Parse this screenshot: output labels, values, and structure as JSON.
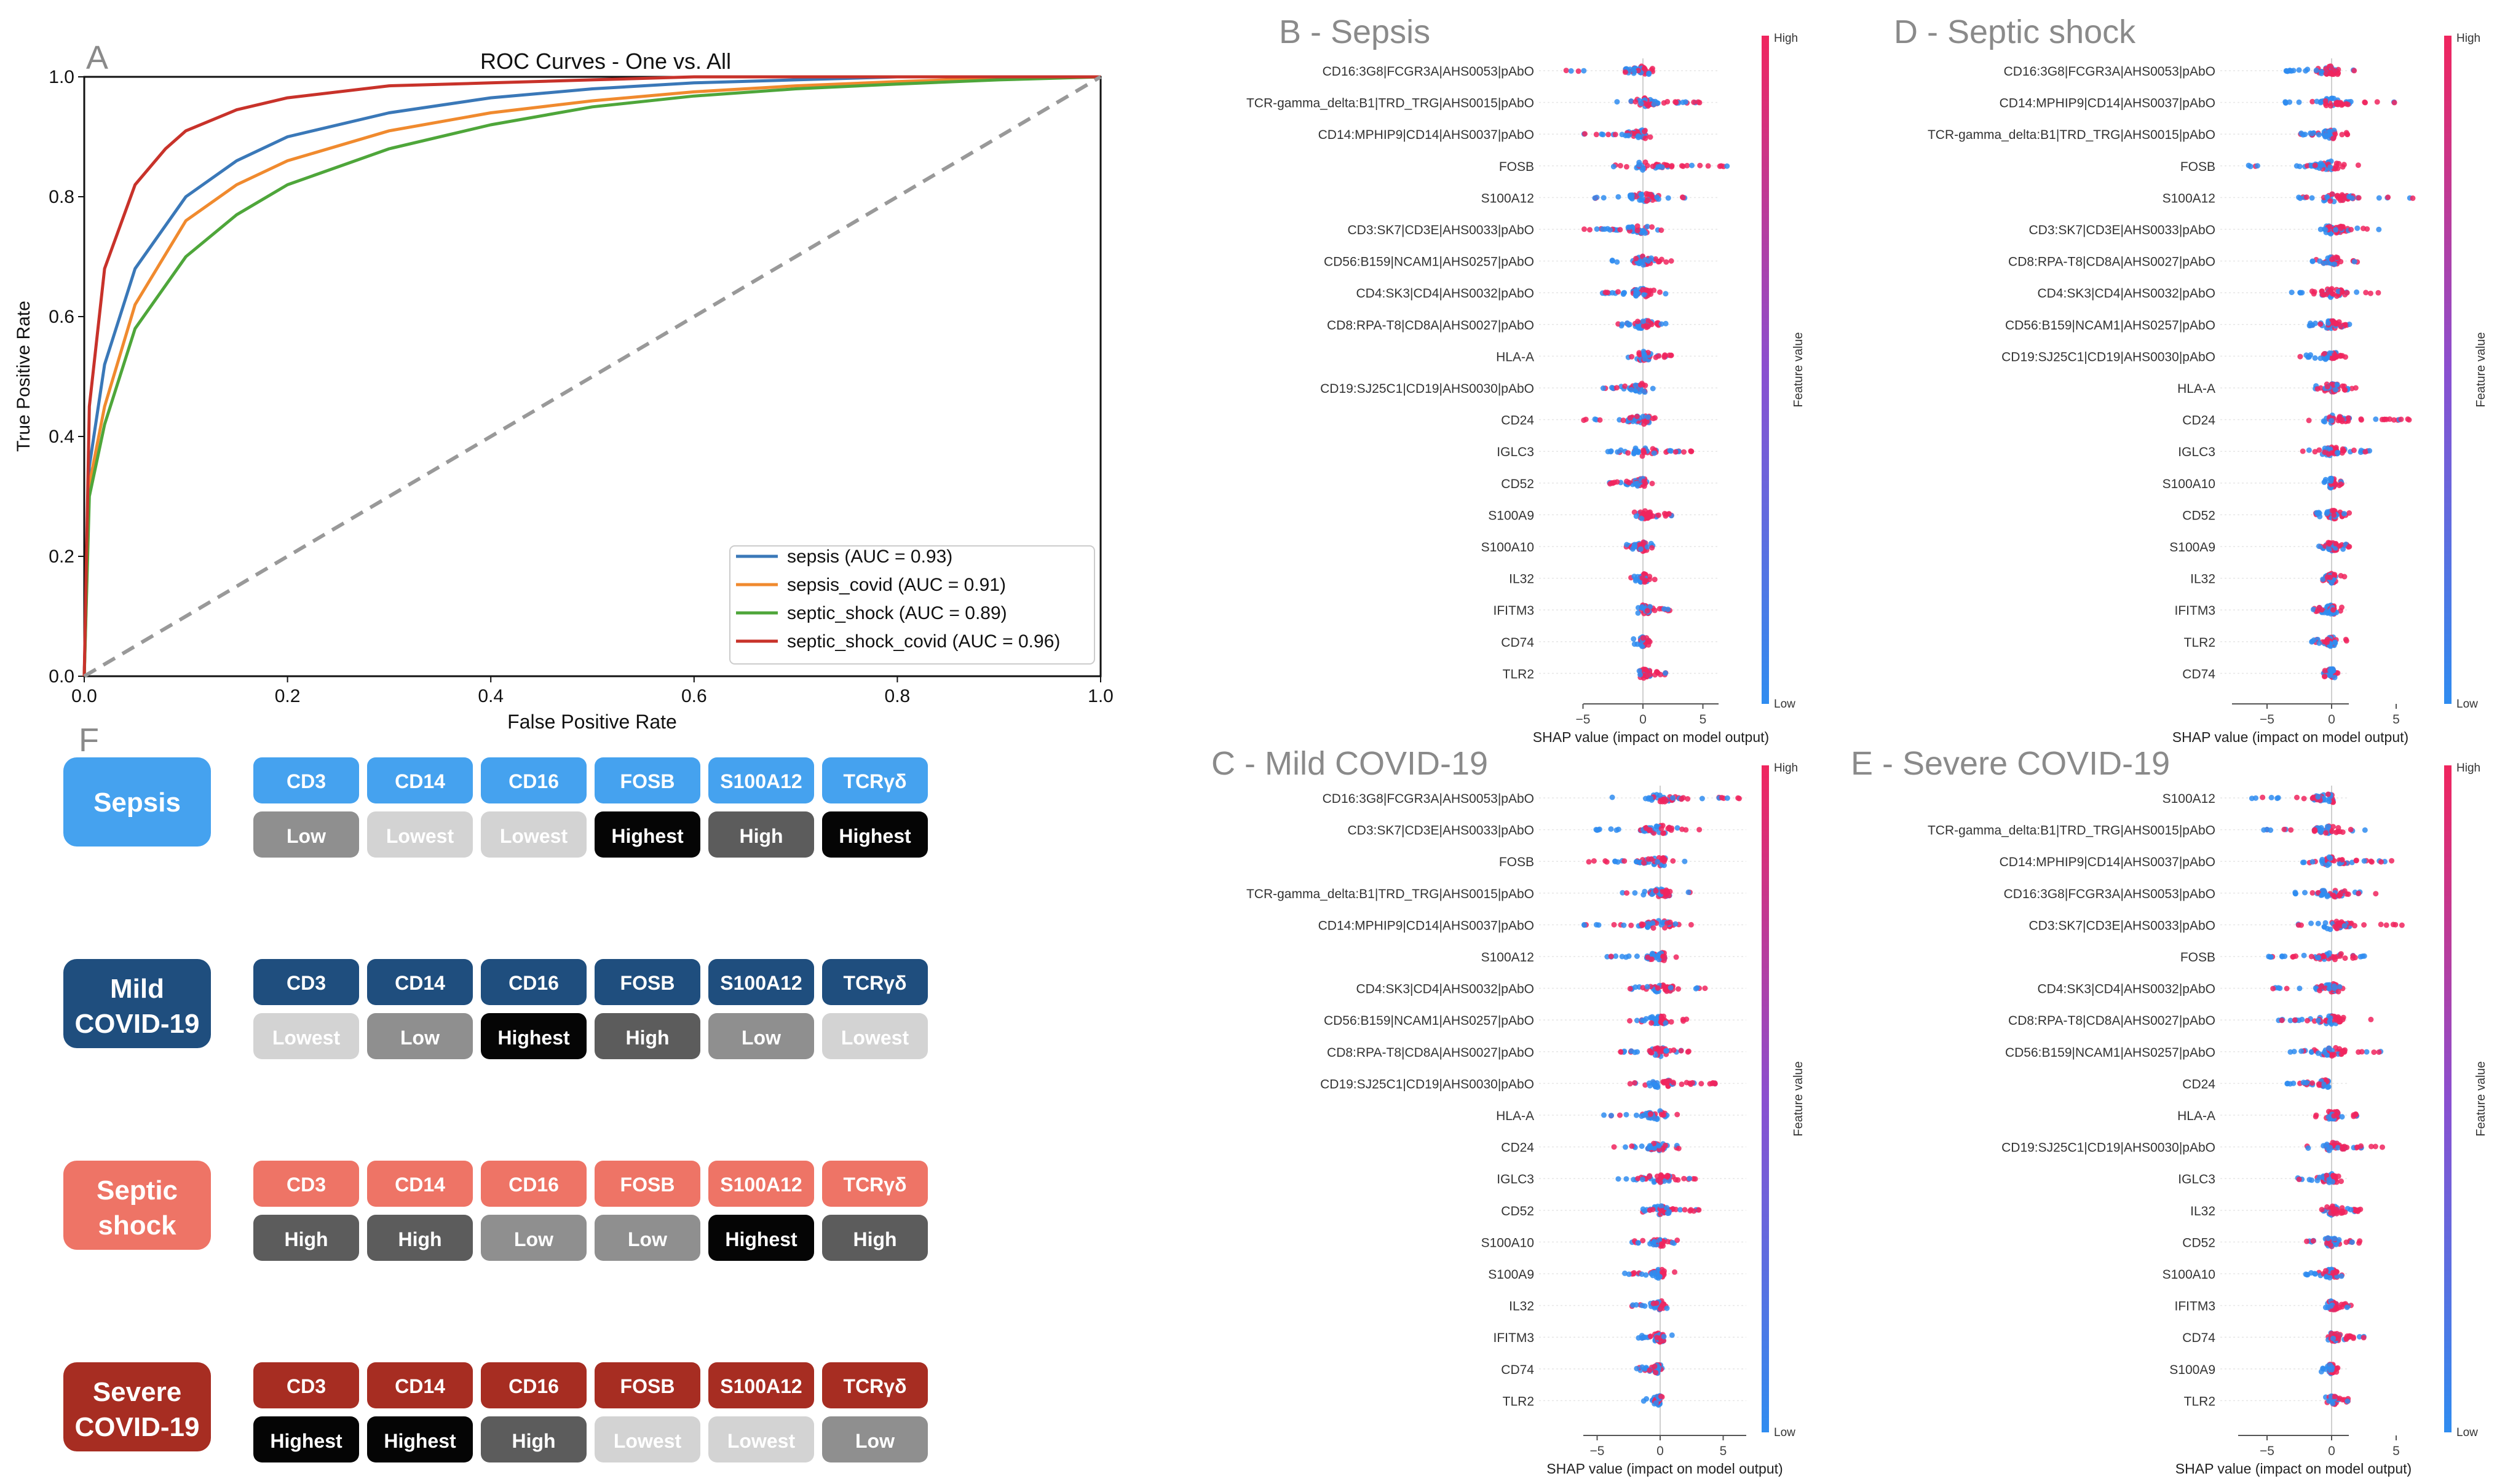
{
  "colors": {
    "roc_sepsis": "#3a78b8",
    "roc_sepsis_covid": "#f08a2e",
    "roc_septic_shock": "#4ea63a",
    "roc_septic_shock_covid": "#c8322a",
    "shap_low": "#2f8cf0",
    "shap_high": "#f0255e",
    "sepsis_label": "#45a2ef",
    "mild_label": "#1f4e7e",
    "shock_label": "#ee7466",
    "severe_label": "#a72d22",
    "level_lowest": "#d3d3d3",
    "level_low": "#8f8f8f",
    "level_high": "#5c5c5c",
    "level_highest": "#050505"
  },
  "chart_data": [
    {
      "panel": "A",
      "type": "line",
      "title": "ROC Curves - One vs. All",
      "xlabel": "False Positive Rate",
      "ylabel": "True Positive Rate",
      "xlim": [
        0,
        1
      ],
      "ylim": [
        0,
        1
      ],
      "xticks": [
        "0.0",
        "0.2",
        "0.4",
        "0.6",
        "0.8",
        "1.0"
      ],
      "yticks": [
        "0.0",
        "0.2",
        "0.4",
        "0.6",
        "0.8",
        "1.0"
      ],
      "legend_position": "bottom-right",
      "series": [
        {
          "name": "sepsis (AUC = 0.93)",
          "color": "#3a78b8",
          "x": [
            0,
            0.005,
            0.02,
            0.05,
            0.1,
            0.15,
            0.2,
            0.3,
            0.4,
            0.5,
            0.6,
            0.7,
            0.8,
            0.9,
            1.0
          ],
          "y": [
            0,
            0.35,
            0.52,
            0.68,
            0.8,
            0.86,
            0.9,
            0.94,
            0.965,
            0.98,
            0.99,
            0.995,
            1.0,
            1.0,
            1.0
          ]
        },
        {
          "name": "sepsis_covid (AUC = 0.91)",
          "color": "#f08a2e",
          "x": [
            0,
            0.005,
            0.02,
            0.05,
            0.1,
            0.15,
            0.2,
            0.3,
            0.4,
            0.5,
            0.6,
            0.7,
            0.8,
            0.9,
            1.0
          ],
          "y": [
            0,
            0.32,
            0.45,
            0.62,
            0.76,
            0.82,
            0.86,
            0.91,
            0.94,
            0.96,
            0.975,
            0.985,
            0.992,
            0.998,
            1.0
          ]
        },
        {
          "name": "septic_shock (AUC = 0.89)",
          "color": "#4ea63a",
          "x": [
            0,
            0.005,
            0.02,
            0.05,
            0.1,
            0.15,
            0.2,
            0.3,
            0.4,
            0.5,
            0.6,
            0.7,
            0.8,
            0.9,
            1.0
          ],
          "y": [
            0,
            0.3,
            0.42,
            0.58,
            0.7,
            0.77,
            0.82,
            0.88,
            0.92,
            0.95,
            0.968,
            0.98,
            0.988,
            0.995,
            1.0
          ]
        },
        {
          "name": "septic_shock_covid (AUC = 0.96)",
          "color": "#c8322a",
          "x": [
            0,
            0.005,
            0.02,
            0.05,
            0.08,
            0.1,
            0.15,
            0.2,
            0.3,
            0.4,
            0.5,
            0.6,
            0.8,
            1.0
          ],
          "y": [
            0,
            0.45,
            0.68,
            0.82,
            0.88,
            0.91,
            0.945,
            0.965,
            0.985,
            0.99,
            0.995,
            1.0,
            1.0,
            1.0
          ]
        },
        {
          "name": "chance",
          "color": "#999999",
          "dashed": true,
          "x": [
            0,
            1
          ],
          "y": [
            0,
            1
          ]
        }
      ]
    },
    {
      "panel": "B",
      "type": "scatter",
      "title": "B - Sepsis",
      "xlabel": "SHAP value (impact on model output)",
      "colorbar_label": "Feature value",
      "colorbar_high": "High",
      "colorbar_low": "Low",
      "xlim": [
        -7,
        7.5
      ],
      "xticks": [
        -5,
        0,
        5
      ],
      "features": [
        "CD16:3G8|FCGR3A|AHS0053|pAbO",
        "TCR-gamma_delta:B1|TRD_TRG|AHS0015|pAbO",
        "CD14:MPHIP9|CD14|AHS0037|pAbO",
        "FOSB",
        "S100A12",
        "CD3:SK7|CD3E|AHS0033|pAbO",
        "CD56:B159|NCAM1|AHS0257|pAbO",
        "CD4:SK3|CD4|AHS0032|pAbO",
        "CD8:RPA-T8|CD8A|AHS0027|pAbO",
        "HLA-A",
        "CD19:SJ25C1|CD19|AHS0030|pAbO",
        "CD24",
        "IGLC3",
        "CD52",
        "S100A9",
        "S100A10",
        "IL32",
        "IFITM3",
        "CD74",
        "TLR2"
      ],
      "min": [
        -6.4,
        -2.5,
        -5.5,
        -2.6,
        -4.3,
        -4.9,
        -3.4,
        -3.4,
        -2.4,
        -1.3,
        -3.9,
        -5.1,
        -3.3,
        -2.8,
        -1.2,
        -1.5,
        -1.0,
        -0.6,
        -0.8,
        -0.5
      ],
      "max": [
        1.4,
        5.0,
        1.0,
        8.2,
        3.8,
        1.8,
        2.5,
        2.0,
        2.0,
        2.4,
        0.9,
        2.3,
        4.6,
        0.8,
        2.6,
        0.9,
        1.0,
        2.4,
        0.6,
        2.4
      ]
    },
    {
      "panel": "D",
      "type": "scatter",
      "title": "D - Septic shock",
      "xlabel": "SHAP value (impact on model output)",
      "colorbar_label": "Feature value",
      "colorbar_high": "High",
      "colorbar_low": "Low",
      "xlim": [
        -7,
        7.5
      ],
      "xticks": [
        -5,
        0,
        5
      ],
      "features": [
        "CD16:3G8|FCGR3A|AHS0053|pAbO",
        "CD14:MPHIP9|CD14|AHS0037|pAbO",
        "TCR-gamma_delta:B1|TRD_TRG|AHS0015|pAbO",
        "FOSB",
        "S100A12",
        "CD3:SK7|CD3E|AHS0033|pAbO",
        "CD8:RPA-T8|CD8A|AHS0027|pAbO",
        "CD4:SK3|CD4|AHS0032|pAbO",
        "CD56:B159|NCAM1|AHS0257|pAbO",
        "CD19:SJ25C1|CD19|AHS0030|pAbO",
        "HLA-A",
        "CD24",
        "IGLC3",
        "S100A10",
        "CD52",
        "S100A9",
        "IL32",
        "IFITM3",
        "TLR2",
        "CD74"
      ],
      "min": [
        -4.7,
        -3.6,
        -2.4,
        -6.5,
        -2.7,
        -2.3,
        -1.8,
        -3.3,
        -1.8,
        -2.7,
        -1.5,
        -2.6,
        -2.6,
        -0.6,
        -1.5,
        -1.0,
        -0.8,
        -1.5,
        -1.6,
        -0.7
      ],
      "max": [
        2.5,
        5.4,
        1.5,
        2.3,
        6.7,
        4.0,
        2.0,
        3.7,
        1.4,
        1.4,
        2.2,
        6.0,
        3.5,
        1.0,
        1.5,
        1.5,
        1.0,
        0.8,
        1.2,
        0.5
      ]
    },
    {
      "panel": "C",
      "type": "scatter",
      "title": "C - Mild COVID-19",
      "xlabel": "SHAP value (impact on model output)",
      "colorbar_label": "Feature value",
      "colorbar_high": "High",
      "colorbar_low": "Low",
      "xlim": [
        -7,
        7.5
      ],
      "xticks": [
        -5,
        0,
        5
      ],
      "features": [
        "CD16:3G8|FCGR3A|AHS0053|pAbO",
        "CD3:SK7|CD3E|AHS0033|pAbO",
        "FOSB",
        "TCR-gamma_delta:B1|TRD_TRG|AHS0015|pAbO",
        "CD14:MPHIP9|CD14|AHS0037|pAbO",
        "S100A12",
        "CD4:SK3|CD4|AHS0032|pAbO",
        "CD56:B159|NCAM1|AHS0257|pAbO",
        "CD8:RPA-T8|CD8A|AHS0027|pAbO",
        "CD19:SJ25C1|CD19|AHS0030|pAbO",
        "HLA-A",
        "CD24",
        "IGLC3",
        "CD52",
        "S100A10",
        "S100A9",
        "IL32",
        "IFITM3",
        "CD74",
        "TLR2"
      ],
      "min": [
        -3.8,
        -6.3,
        -7.6,
        -3.3,
        -6.4,
        -4.5,
        -2.5,
        -2.8,
        -3.2,
        -2.4,
        -4.5,
        -3.9,
        -3.5,
        -1.8,
        -2.3,
        -3.1,
        -2.3,
        -1.8,
        -1.9,
        -1.4
      ],
      "max": [
        6.8,
        3.2,
        2.3,
        3.2,
        3.2,
        1.7,
        4.0,
        2.2,
        2.3,
        4.7,
        1.5,
        1.8,
        3.0,
        3.1,
        1.6,
        1.4,
        1.0,
        1.2,
        0.3,
        0.3
      ]
    },
    {
      "panel": "E",
      "type": "scatter",
      "title": "E - Severe COVID-19",
      "xlabel": "SHAP value (impact on model output)",
      "colorbar_label": "Feature value",
      "colorbar_high": "High",
      "colorbar_low": "Low",
      "xlim": [
        -7,
        7.5
      ],
      "xticks": [
        -5,
        0,
        5
      ],
      "features": [
        "S100A12",
        "TCR-gamma_delta:B1|TRD_TRG|AHS0015|pAbO",
        "CD14:MPHIP9|CD14|AHS0037|pAbO",
        "CD16:3G8|FCGR3A|AHS0053|pAbO",
        "CD3:SK7|CD3E|AHS0033|pAbO",
        "FOSB",
        "CD4:SK3|CD4|AHS0032|pAbO",
        "CD8:RPA-T8|CD8A|AHS0027|pAbO",
        "CD56:B159|NCAM1|AHS0257|pAbO",
        "CD24",
        "HLA-A",
        "CD19:SJ25C1|CD19|AHS0030|pAbO",
        "IGLC3",
        "IL32",
        "CD52",
        "S100A10",
        "IFITM3",
        "CD74",
        "S100A9",
        "TLR2"
      ],
      "min": [
        -6.2,
        -5.4,
        -3.3,
        -3.3,
        -2.8,
        -5.1,
        -4.7,
        -4.2,
        -3.3,
        -3.5,
        -1.3,
        -2.0,
        -3.0,
        -0.8,
        -2.1,
        -2.0,
        -0.5,
        -0.5,
        -0.8,
        -0.5
      ],
      "max": [
        0.5,
        3.2,
        5.0,
        3.6,
        6.2,
        2.8,
        3.0,
        3.5,
        3.9,
        -0.8,
        2.0,
        4.0,
        1.4,
        2.3,
        2.5,
        1.7,
        1.5,
        2.7,
        0.5,
        1.3
      ]
    }
  ],
  "panel_labels": {
    "a": "A",
    "f": "F"
  },
  "markers": {
    "marker_names": [
      "CD3",
      "CD14",
      "CD16",
      "FOSB",
      "S100A12",
      "TCRγδ"
    ],
    "rows": [
      {
        "label_line1": "Sepsis",
        "label_line2": "",
        "color": "#45a2ef",
        "levels": [
          "Low",
          "Lowest",
          "Lowest",
          "Highest",
          "High",
          "Highest"
        ]
      },
      {
        "label_line1": "Mild",
        "label_line2": "COVID-19",
        "color": "#1f4e7e",
        "levels": [
          "Lowest",
          "Low",
          "Highest",
          "High",
          "Low",
          "Lowest"
        ]
      },
      {
        "label_line1": "Septic",
        "label_line2": "shock",
        "color": "#ee7466",
        "levels": [
          "High",
          "High",
          "Low",
          "Low",
          "Highest",
          "High"
        ]
      },
      {
        "label_line1": "Severe",
        "label_line2": "COVID-19",
        "color": "#a72d22",
        "levels": [
          "Highest",
          "Highest",
          "High",
          "Lowest",
          "Lowest",
          "Low"
        ]
      }
    ]
  }
}
